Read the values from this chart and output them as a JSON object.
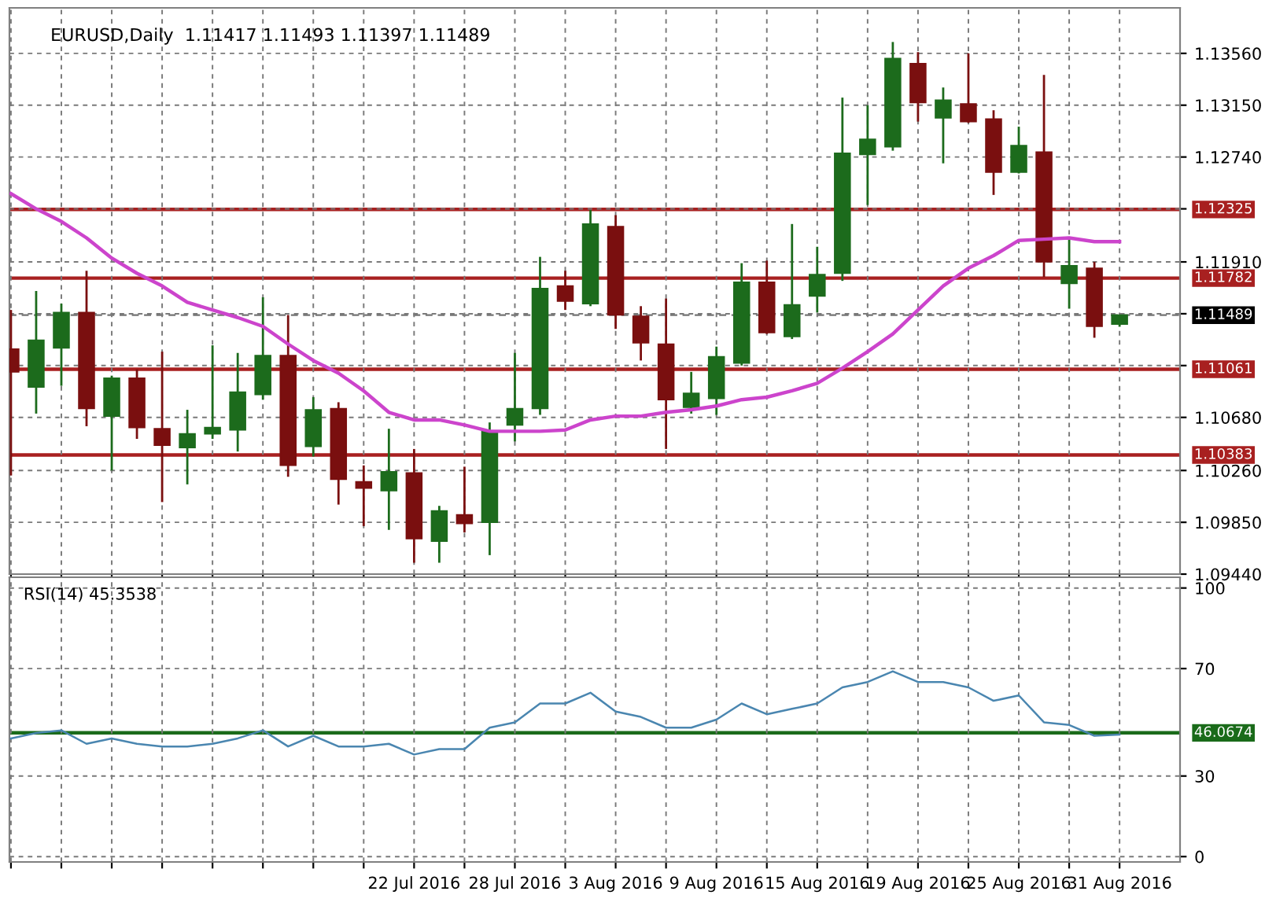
{
  "chart_data": [
    {
      "type": "candlestick",
      "title": "EURUSD,Daily  1.11417 1.11493 1.11397 1.11489",
      "ohlc": [
        [
          1.1122,
          1.1153,
          1.1022,
          1.1104
        ],
        [
          1.1092,
          1.1168,
          1.1071,
          1.1129
        ],
        [
          1.1123,
          1.1158,
          1.1093,
          1.1151
        ],
        [
          1.1151,
          1.1184,
          1.1061,
          1.1075
        ],
        [
          1.1069,
          1.1101,
          1.1026,
          1.1099
        ],
        [
          1.1099,
          1.1106,
          1.1051,
          1.106
        ],
        [
          1.1059,
          1.112,
          1.1001,
          1.1046
        ],
        [
          1.1044,
          1.1074,
          1.1015,
          1.1055
        ],
        [
          1.1055,
          1.1125,
          1.1051,
          1.106
        ],
        [
          1.1058,
          1.1119,
          1.1041,
          1.1088
        ],
        [
          1.1086,
          1.1163,
          1.1082,
          1.1117
        ],
        [
          1.1117,
          1.1149,
          1.1021,
          1.103
        ],
        [
          1.1045,
          1.1084,
          1.1037,
          1.1074
        ],
        [
          1.1075,
          1.108,
          1.0999,
          1.1019
        ],
        [
          1.1017,
          1.103,
          1.0982,
          1.1012
        ],
        [
          1.101,
          1.1059,
          1.0979,
          1.1025
        ],
        [
          1.1024,
          1.1043,
          1.0953,
          1.0972
        ],
        [
          1.097,
          1.0998,
          1.0953,
          1.0994
        ],
        [
          1.0991,
          1.1029,
          1.0977,
          1.0984
        ],
        [
          1.0985,
          1.1064,
          1.0959,
          1.1057
        ],
        [
          1.1062,
          1.1119,
          1.1049,
          1.1075
        ],
        [
          1.1075,
          1.1195,
          1.107,
          1.117
        ],
        [
          1.1172,
          1.1184,
          1.1153,
          1.116
        ],
        [
          1.1158,
          1.1232,
          1.1156,
          1.1221
        ],
        [
          1.1219,
          1.1228,
          1.1138,
          1.1149
        ],
        [
          1.1148,
          1.1156,
          1.1113,
          1.1127
        ],
        [
          1.1126,
          1.1162,
          1.1043,
          1.1082
        ],
        [
          1.1076,
          1.1104,
          1.1071,
          1.1087
        ],
        [
          1.1083,
          1.1124,
          1.107,
          1.1116
        ],
        [
          1.1111,
          1.119,
          1.1109,
          1.1175
        ],
        [
          1.1175,
          1.1192,
          1.1134,
          1.1135
        ],
        [
          1.1132,
          1.1221,
          1.113,
          1.1157
        ],
        [
          1.1164,
          1.1203,
          1.1151,
          1.1181
        ],
        [
          1.1182,
          1.1321,
          1.1176,
          1.1277
        ],
        [
          1.1276,
          1.1315,
          1.1236,
          1.1288
        ],
        [
          1.1282,
          1.1365,
          1.1279,
          1.1352
        ],
        [
          1.1348,
          1.1357,
          1.1302,
          1.1317
        ],
        [
          1.1305,
          1.1329,
          1.1269,
          1.1319
        ],
        [
          1.1316,
          1.1356,
          1.1301,
          1.1302
        ],
        [
          1.1304,
          1.1311,
          1.1244,
          1.1262
        ],
        [
          1.1262,
          1.1298,
          1.1261,
          1.1283
        ],
        [
          1.1278,
          1.1339,
          1.1179,
          1.1191
        ],
        [
          1.1174,
          1.1209,
          1.1154,
          1.1188
        ],
        [
          1.1186,
          1.1191,
          1.1131,
          1.114
        ],
        [
          1.11417,
          1.11493,
          1.11397,
          1.11489
        ]
      ],
      "colors": [
        "#7a0f0f",
        "#1c6b1c",
        "#1c6b1c",
        "#7a0f0f",
        "#1c6b1c",
        "#7a0f0f",
        "#7a0f0f",
        "#1c6b1c",
        "#1c6b1c",
        "#1c6b1c",
        "#1c6b1c",
        "#7a0f0f",
        "#1c6b1c",
        "#7a0f0f",
        "#7a0f0f",
        "#1c6b1c",
        "#7a0f0f",
        "#1c6b1c",
        "#7a0f0f",
        "#1c6b1c",
        "#1c6b1c",
        "#1c6b1c",
        "#7a0f0f",
        "#1c6b1c",
        "#7a0f0f",
        "#7a0f0f",
        "#7a0f0f",
        "#1c6b1c",
        "#1c6b1c",
        "#1c6b1c",
        "#7a0f0f",
        "#1c6b1c",
        "#1c6b1c",
        "#1c6b1c",
        "#1c6b1c",
        "#1c6b1c",
        "#7a0f0f",
        "#1c6b1c",
        "#7a0f0f",
        "#7a0f0f",
        "#1c6b1c",
        "#7a0f0f",
        "#1c6b1c",
        "#7a0f0f",
        "#1c6b1c"
      ],
      "series": [
        {
          "type": "line",
          "color": "#cc44cc",
          "values": [
            1.1245,
            1.1233,
            1.1223,
            1.121,
            1.1194,
            1.1182,
            1.1172,
            1.1159,
            1.1153,
            1.1147,
            1.114,
            1.1126,
            1.1113,
            1.1103,
            1.1089,
            1.1072,
            1.1066,
            1.1066,
            1.1062,
            1.1057,
            1.1057,
            1.1057,
            1.1058,
            1.1066,
            1.1069,
            1.1069,
            1.1072,
            1.1074,
            1.1077,
            1.1082,
            1.1084,
            1.1089,
            1.1095,
            1.1107,
            1.112,
            1.1134,
            1.1153,
            1.1172,
            1.1186,
            1.1196,
            1.1208,
            1.1209,
            1.121,
            1.1207,
            1.1207
          ]
        }
      ],
      "ylim": [
        1.0944,
        1.1392
      ],
      "yticks": [
        {
          "value": 1.1356,
          "label": "1.13560"
        },
        {
          "value": 1.1315,
          "label": "1.13150"
        },
        {
          "value": 1.1274,
          "label": "1.12740"
        },
        {
          "value": 1.1233,
          "label": null
        },
        {
          "value": 1.1191,
          "label": "1.11910"
        },
        {
          "value": 1.115,
          "label": null
        },
        {
          "value": 1.1109,
          "label": null
        },
        {
          "value": 1.1068,
          "label": "1.10680"
        },
        {
          "value": 1.1026,
          "label": "1.10260"
        },
        {
          "value": 1.0985,
          "label": "1.09850"
        },
        {
          "value": 1.0944,
          "label": "1.09440"
        }
      ],
      "ref_lines": [
        {
          "axis": "y",
          "value": 1.12325,
          "label": "1.12325",
          "color": "#a82020"
        },
        {
          "axis": "y",
          "value": 1.11782,
          "label": "1.11782",
          "color": "#a82020"
        },
        {
          "axis": "y",
          "value": 1.11489,
          "label": "1.11489",
          "color": "#000000",
          "line_style": "dashed"
        },
        {
          "axis": "y",
          "value": 1.11061,
          "label": "1.11061",
          "color": "#a82020"
        },
        {
          "axis": "y",
          "value": 1.10383,
          "label": "1.10383",
          "color": "#a82020"
        }
      ],
      "grid": true,
      "tick_labels": "y"
    },
    {
      "type": "line",
      "title": "RSI(14) 45.3538",
      "categories": [
        null,
        null,
        null,
        null,
        null,
        null,
        null,
        null,
        null,
        null,
        null,
        null,
        null,
        null,
        null,
        null,
        "22 Jul 2016",
        null,
        null,
        null,
        "28 Jul 2016",
        null,
        null,
        null,
        "3 Aug 2016",
        null,
        null,
        null,
        "9 Aug 2016",
        null,
        null,
        null,
        "15 Aug 2016",
        null,
        null,
        null,
        "19 Aug 2016",
        null,
        null,
        null,
        "25 Aug 2016",
        null,
        null,
        null,
        "31 Aug 2016"
      ],
      "series": [
        {
          "color": "#4a86b0",
          "values": [
            44,
            46,
            47,
            42,
            44,
            42,
            41,
            41,
            42,
            44,
            47,
            41,
            45,
            41,
            41,
            42,
            38,
            40,
            40,
            48,
            50,
            57,
            57,
            61,
            54,
            52,
            48,
            48,
            51,
            57,
            53,
            55,
            57,
            63,
            65,
            69,
            65,
            65,
            63,
            58,
            60,
            50,
            49,
            45,
            45.4
          ]
        }
      ],
      "ylim": [
        -2,
        104
      ],
      "yticks": [
        0,
        30,
        70,
        100
      ],
      "ref_lines": [
        {
          "axis": "y",
          "value": 46.0674,
          "label": "46.0674",
          "color": "#1a6b1a"
        }
      ],
      "grid": true
    }
  ]
}
